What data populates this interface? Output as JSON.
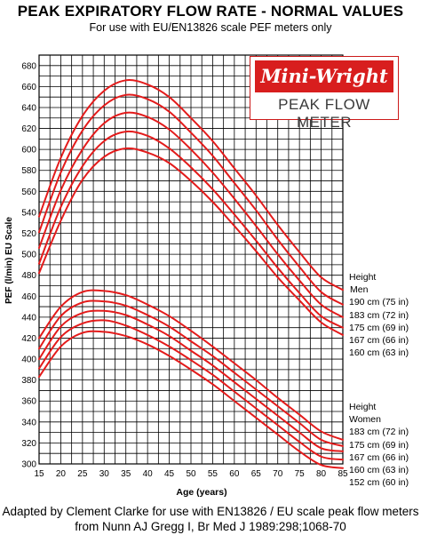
{
  "header": {
    "title": "PEAK EXPIRATORY FLOW RATE - NORMAL VALUES",
    "subtitle": "For use with EU/EN13826 scale PEF meters only"
  },
  "logo": {
    "brand": "Mini-Wright",
    "product": "PEAK FLOW METER"
  },
  "footer": {
    "line1": "Adapted by Clement Clarke for use with EN13826 / EU scale peak flow meters",
    "line2": "from Nunn AJ Gregg I, Br Med J 1989:298;1068-70"
  },
  "legend_men": {
    "heading1": "Height",
    "heading2": "Men",
    "items": [
      "190 cm (75 in)",
      "183 cm (72 in)",
      "175 cm (69 in)",
      "167 cm (66 in)",
      "160 cm (63 in)"
    ]
  },
  "legend_women": {
    "heading1": "Height",
    "heading2": "Women",
    "items": [
      "183 cm (72 in)",
      "175 cm (69 in)",
      "167 cm (66 in)",
      "160 cm (63 in)",
      "152 cm (60 in)"
    ]
  },
  "colors": {
    "curve": "#e31b1b",
    "grid": "#000000"
  },
  "chart_data": {
    "type": "line",
    "xlabel": "Age (years)",
    "ylabel": "PEF (l/min) EU Scale",
    "xlim": [
      15,
      85
    ],
    "ylim": [
      300,
      690
    ],
    "x_ticks": [
      15,
      20,
      25,
      30,
      35,
      40,
      45,
      50,
      55,
      60,
      65,
      70,
      75,
      80,
      85
    ],
    "y_ticks": [
      300,
      320,
      340,
      360,
      380,
      400,
      420,
      440,
      460,
      480,
      500,
      520,
      540,
      560,
      580,
      600,
      620,
      640,
      660,
      680
    ],
    "grid": true,
    "x": [
      15,
      20,
      25,
      30,
      35,
      40,
      45,
      50,
      55,
      60,
      65,
      70,
      75,
      80,
      85
    ],
    "series": [
      {
        "name": "190 cm (75 in)",
        "group": "Men",
        "values": [
          536,
          592,
          632,
          656,
          666,
          662,
          650,
          630,
          608,
          582,
          556,
          528,
          502,
          478,
          466
        ]
      },
      {
        "name": "183 cm (72 in)",
        "group": "Men",
        "values": [
          521,
          578,
          618,
          642,
          652,
          648,
          636,
          616,
          594,
          568,
          542,
          514,
          488,
          464,
          452
        ]
      },
      {
        "name": "175 cm (69 in)",
        "group": "Men",
        "values": [
          506,
          561,
          600,
          625,
          635,
          631,
          619,
          600,
          578,
          553,
          527,
          500,
          475,
          452,
          440
        ]
      },
      {
        "name": "167 cm (66 in)",
        "group": "Men",
        "values": [
          491,
          545,
          584,
          608,
          617,
          613,
          601,
          583,
          562,
          538,
          513,
          487,
          463,
          441,
          430
        ]
      },
      {
        "name": "160 cm (63 in)",
        "group": "Men",
        "values": [
          482,
          532,
          571,
          593,
          601,
          597,
          587,
          570,
          550,
          527,
          503,
          478,
          456,
          435,
          423
        ]
      },
      {
        "name": "183 cm (72 in)",
        "group": "Women",
        "values": [
          420,
          450,
          464,
          465,
          461,
          452,
          441,
          427,
          412,
          396,
          380,
          363,
          347,
          331,
          323
        ]
      },
      {
        "name": "175 cm (69 in)",
        "group": "Women",
        "values": [
          410,
          441,
          454,
          455,
          451,
          442,
          431,
          417,
          403,
          387,
          371,
          355,
          339,
          323,
          317
        ]
      },
      {
        "name": "167 cm (66 in)",
        "group": "Women",
        "values": [
          400,
          431,
          444,
          446,
          442,
          433,
          422,
          408,
          394,
          378,
          362,
          346,
          330,
          315,
          312
        ]
      },
      {
        "name": "160 cm (63 in)",
        "group": "Women",
        "values": [
          391,
          421,
          434,
          437,
          432,
          423,
          412,
          399,
          385,
          369,
          353,
          337,
          321,
          307,
          304
        ]
      },
      {
        "name": "152 cm (60 in)",
        "group": "Women",
        "values": [
          383,
          412,
          425,
          426,
          422,
          414,
          403,
          390,
          376,
          360,
          344,
          328,
          312,
          299,
          296
        ]
      }
    ]
  }
}
